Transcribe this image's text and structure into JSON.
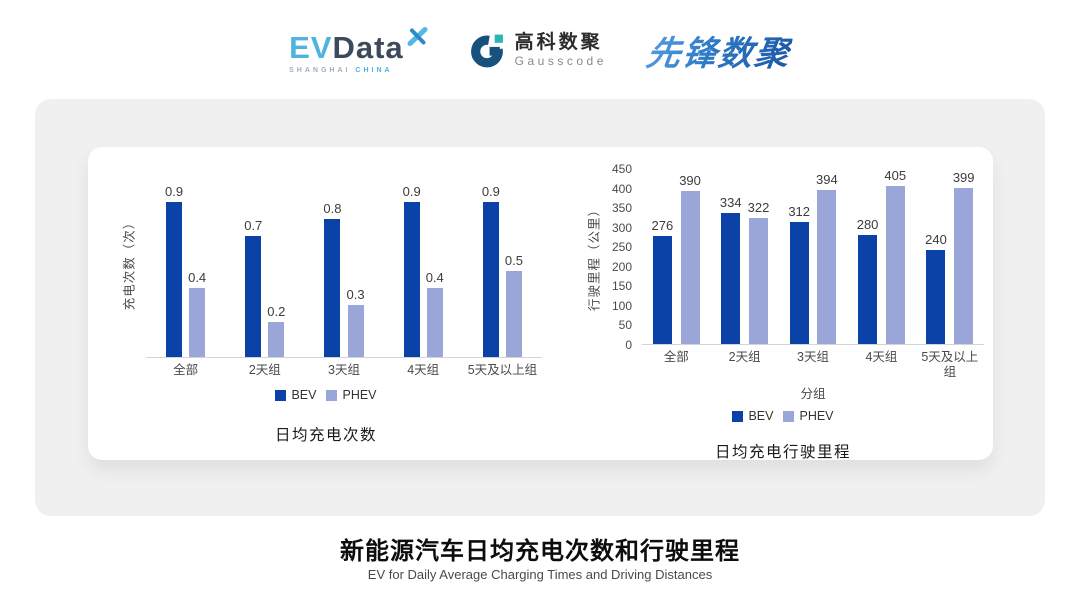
{
  "logos": {
    "evdata": {
      "part1": "EV",
      "part2": "Data",
      "sub1": "SHANGHAI",
      "sub2": "CHINA"
    },
    "gausscode": {
      "cn": "高科数聚",
      "en": "Gausscode"
    },
    "xianfeng": {
      "text": "先锋数聚"
    }
  },
  "colors": {
    "bev": "#0B42A8",
    "phev": "#9AA5D8",
    "card_bg": "#F0F0F1",
    "axis_line": "#D4D4D4",
    "evdata_blue": "#4FB3DF",
    "evdata_dark": "#3D4A5C",
    "gauss_navy": "#17527F",
    "gauss_teal": "#27B5B5",
    "xianfeng_blue": "#2E79C5"
  },
  "footer": {
    "title": "新能源汽车日均充电次数和行驶里程",
    "subtitle": "EV for Daily Average Charging Times and Driving Distances"
  },
  "chart_data": [
    {
      "type": "bar",
      "title": "日均充电次数",
      "ylabel": "充电次数（次）",
      "xlabel": "",
      "categories": [
        "全部",
        "2天组",
        "3天组",
        "4天组",
        "5天及以上组"
      ],
      "series": [
        {
          "name": "BEV",
          "values": [
            0.9,
            0.7,
            0.8,
            0.9,
            0.9
          ]
        },
        {
          "name": "PHEV",
          "values": [
            0.4,
            0.2,
            0.3,
            0.4,
            0.5
          ]
        }
      ],
      "ylim": [
        0,
        1.1
      ],
      "yticks": [],
      "grid": false,
      "legend_position": "bottom"
    },
    {
      "type": "bar",
      "title": "日均充电行驶里程",
      "ylabel": "行驶里程（公里）",
      "xlabel": "分组",
      "categories": [
        "全部",
        "2天组",
        "3天组",
        "4天组",
        "5天及以上组"
      ],
      "series": [
        {
          "name": "BEV",
          "values": [
            276,
            334,
            312,
            280,
            240
          ]
        },
        {
          "name": "PHEV",
          "values": [
            390,
            322,
            394,
            405,
            399
          ]
        }
      ],
      "ylim": [
        0,
        450
      ],
      "yticks": [
        0,
        50,
        100,
        150,
        200,
        250,
        300,
        350,
        400,
        450
      ],
      "grid": false,
      "legend_position": "bottom"
    }
  ]
}
